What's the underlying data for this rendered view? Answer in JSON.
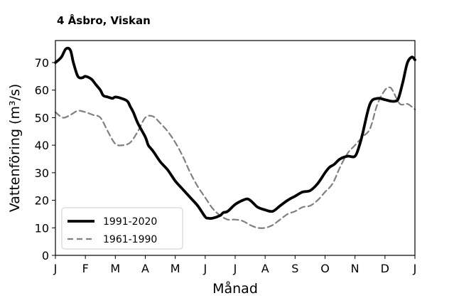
{
  "chart_data": {
    "type": "line",
    "title": "4 Åsbro, Viskan",
    "xlabel": "Månad",
    "ylabel": "Vattenföring (m³/s)",
    "ylim": [
      0,
      78
    ],
    "xlim": [
      0,
      12
    ],
    "yticks": [
      0,
      10,
      20,
      30,
      40,
      50,
      60,
      70
    ],
    "xtick_labels": [
      "J",
      "F",
      "M",
      "A",
      "M",
      "J",
      "J",
      "A",
      "S",
      "O",
      "N",
      "D",
      "J"
    ],
    "legend_position": "lower-left",
    "grid": false,
    "series": [
      {
        "name": "1991-2020",
        "style": "solid",
        "color": "#000000",
        "x": [
          0,
          0.2,
          0.35,
          0.5,
          0.6,
          0.75,
          0.9,
          1.0,
          1.2,
          1.35,
          1.5,
          1.6,
          1.75,
          1.9,
          2.0,
          2.2,
          2.4,
          2.5,
          2.6,
          2.75,
          3.0,
          3.1,
          3.25,
          3.5,
          3.75,
          4.0,
          4.25,
          4.5,
          4.75,
          5.0,
          5.1,
          5.25,
          5.5,
          5.6,
          5.75,
          6.0,
          6.25,
          6.4,
          6.5,
          6.6,
          6.75,
          7.0,
          7.25,
          7.5,
          7.75,
          8.0,
          8.25,
          8.5,
          8.75,
          9.0,
          9.15,
          9.3,
          9.5,
          9.75,
          10.0,
          10.15,
          10.25,
          10.5,
          10.75,
          11.0,
          11.2,
          11.35,
          11.45,
          11.6,
          11.75,
          11.9,
          12.0
        ],
        "values": [
          70,
          72,
          75,
          74.5,
          70,
          65,
          64.5,
          65,
          64,
          62,
          60,
          58,
          57.5,
          57,
          57.5,
          57,
          56,
          54,
          52,
          48,
          43,
          40,
          38,
          34,
          31,
          27,
          24,
          21,
          18,
          14,
          13.5,
          13.5,
          14.5,
          15.5,
          16,
          18.5,
          20,
          20.5,
          20,
          19,
          17.5,
          16.5,
          16,
          18,
          20,
          21.5,
          23,
          23.5,
          26,
          30,
          32,
          33,
          35,
          36,
          36,
          40,
          44,
          55,
          57,
          56.5,
          56,
          56,
          57,
          63,
          70,
          72,
          71
        ]
      },
      {
        "name": "1961-1990",
        "style": "dashed",
        "color": "#808080",
        "x": [
          0,
          0.25,
          0.5,
          0.75,
          1.0,
          1.25,
          1.5,
          1.75,
          2.0,
          2.25,
          2.5,
          2.75,
          3.0,
          3.25,
          3.5,
          3.75,
          4.0,
          4.25,
          4.5,
          4.75,
          5.0,
          5.25,
          5.5,
          5.75,
          6.0,
          6.25,
          6.5,
          6.75,
          7.0,
          7.25,
          7.5,
          7.75,
          8.0,
          8.25,
          8.5,
          8.75,
          9.0,
          9.25,
          9.5,
          9.75,
          10.0,
          10.25,
          10.5,
          10.75,
          11.0,
          11.15,
          11.25,
          11.5,
          11.75,
          12.0
        ],
        "values": [
          52,
          50,
          51,
          52.5,
          52,
          51,
          50,
          45,
          40.5,
          40,
          41,
          45,
          50,
          50.5,
          48,
          45,
          41,
          36,
          30,
          25,
          21,
          17,
          14.5,
          13,
          13,
          12.5,
          11,
          10,
          10,
          11,
          13,
          15,
          16,
          17.5,
          18,
          20,
          23,
          26,
          32,
          37,
          40,
          43,
          46,
          55,
          60,
          61,
          60,
          55,
          55,
          53
        ]
      }
    ]
  }
}
